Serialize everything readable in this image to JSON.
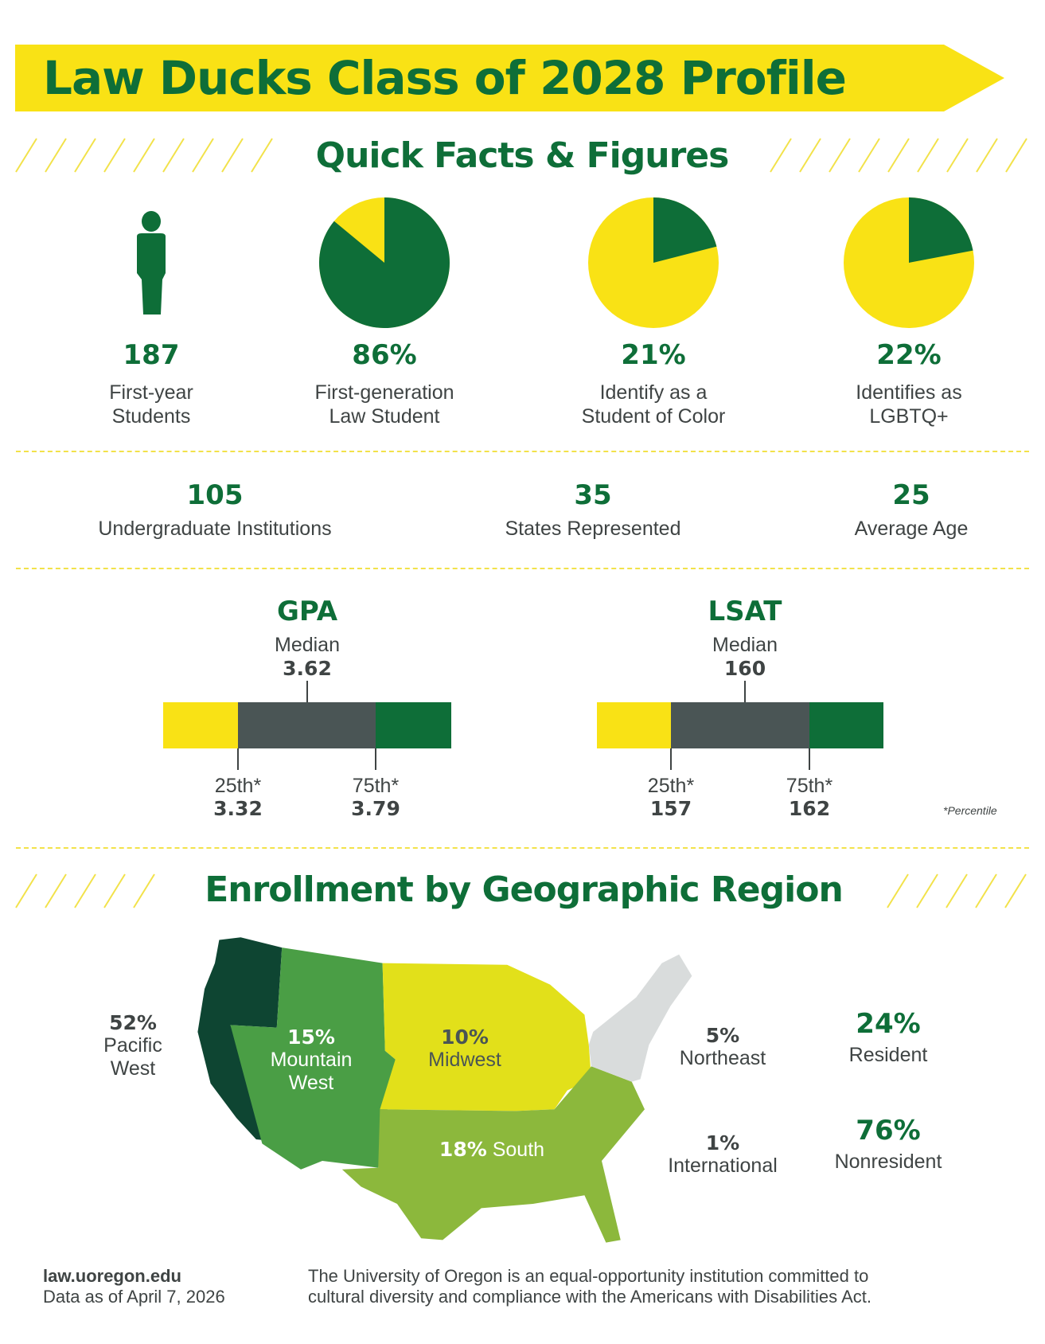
{
  "title": "Law Ducks Class of 2028 Profile",
  "colors": {
    "green": "#0e6e38",
    "yellow": "#f9e215",
    "gray": "#4a5555"
  },
  "quick_facts": {
    "heading": "Quick Facts & Figures",
    "items": [
      {
        "value": "187",
        "label1": "First-year",
        "label2": "Students",
        "icon": "person-icon"
      },
      {
        "value": "86%",
        "label1": "First-generation",
        "label2": "Law Student",
        "percent": 86
      },
      {
        "value": "21%",
        "label1": "Identify as a",
        "label2": "Student of Color",
        "percent": 21
      },
      {
        "value": "22%",
        "label1": "Identifies as",
        "label2": "LGBTQ+",
        "percent": 22
      }
    ],
    "stats": [
      {
        "value": "105",
        "label": "Undergraduate Institutions"
      },
      {
        "value": "35",
        "label": "States Represented"
      },
      {
        "value": "25",
        "label": "Average Age"
      }
    ]
  },
  "scores": {
    "gpa": {
      "title": "GPA",
      "median_label": "Median",
      "median": "3.62",
      "p25_label": "25th*",
      "p25": "3.32",
      "p75_label": "75th*",
      "p75": "3.79"
    },
    "lsat": {
      "title": "LSAT",
      "median_label": "Median",
      "median": "160",
      "p25_label": "25th*",
      "p25": "157",
      "p75_label": "75th*",
      "p75": "162"
    },
    "footnote": "*Percentile"
  },
  "enrollment": {
    "heading": "Enrollment by Geographic Region",
    "regions": {
      "pacific": {
        "pct": "52%",
        "line1": "Pacific",
        "line2": "West",
        "color": "#0e4532"
      },
      "mountain": {
        "pct": "15%",
        "line1": "Mountain",
        "line2": "West",
        "color": "#4a9e45"
      },
      "midwest": {
        "pct": "10%",
        "name": "Midwest",
        "color": "#e2e01a"
      },
      "south": {
        "pct": "18%",
        "name": "South",
        "color": "#8cb83c"
      },
      "northeast": {
        "pct": "5%",
        "name": "Northeast",
        "color": "#d9dcdc"
      },
      "international": {
        "pct": "1%",
        "name": "International"
      }
    },
    "resident": {
      "pct": "24%",
      "label": "Resident"
    },
    "nonresident": {
      "pct": "76%",
      "label": "Nonresident"
    }
  },
  "footer": {
    "url": "law.uoregon.edu",
    "date": "Data as of April 7, 2026",
    "line1": "The University of Oregon is an equal-opportunity institution committed to",
    "line2": "cultural diversity and compliance with the Americans with Disabilities Act."
  }
}
